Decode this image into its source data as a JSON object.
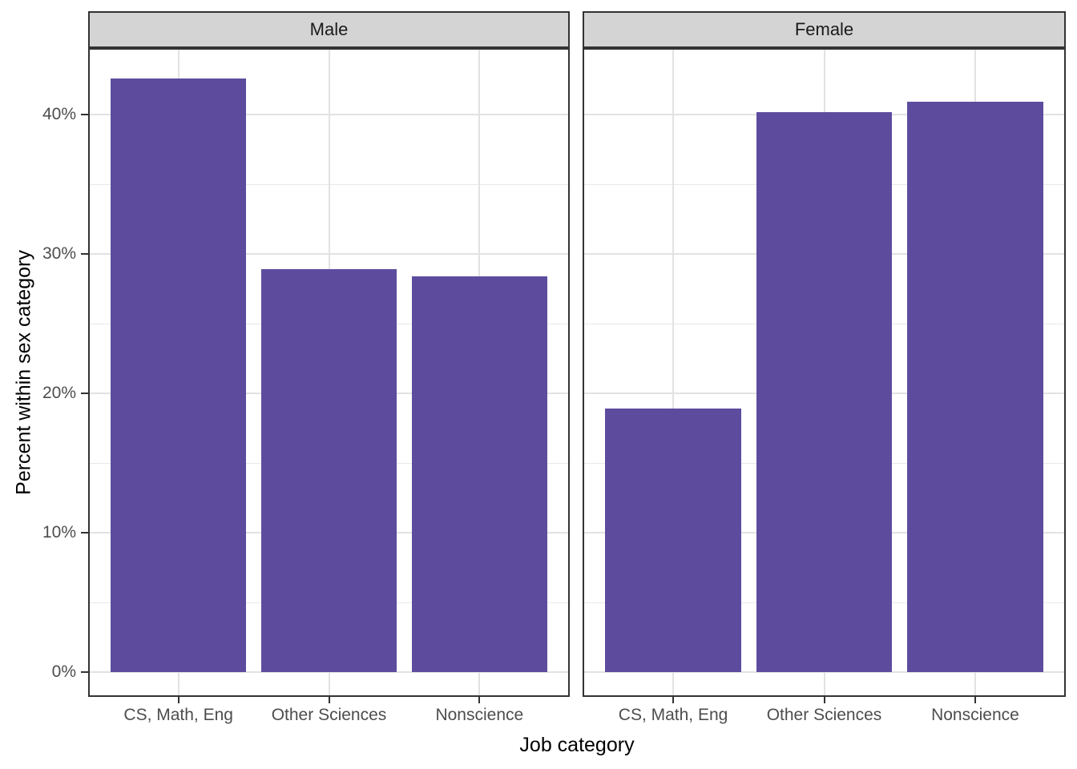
{
  "chart_data": {
    "type": "bar",
    "title": "",
    "xlabel": "Job category",
    "ylabel": "Percent within sex category",
    "categories": [
      "CS, Math, Eng",
      "Other Sciences",
      "Nonscience"
    ],
    "facets": [
      {
        "label": "Male",
        "values": [
          42.6,
          28.9,
          28.4
        ]
      },
      {
        "label": "Female",
        "values": [
          18.9,
          40.2,
          40.9
        ]
      }
    ],
    "y_major_ticks": [
      0,
      10,
      20,
      30,
      40
    ],
    "y_tick_labels": [
      "0%",
      "10%",
      "20%",
      "30%",
      "40%"
    ],
    "y_minor_ticks": [
      5,
      15,
      25,
      35
    ],
    "ylim": [
      -1.8,
      44.8
    ],
    "grid": "horizontal major+minor, vertical major at category centers",
    "legend": "none",
    "colors": {
      "bar": "#5D4C9E",
      "strip_background": "#D4D4D4",
      "strip_text": "#1A1A1A",
      "panel_border": "#333333",
      "panel_background": "#FFFFFF",
      "grid_major": "#E2E2E2",
      "grid_minor": "#E8E8E8",
      "tick_mark": "#333333",
      "tick_label": "#4D4D4D",
      "axis_title": "#000000"
    }
  }
}
